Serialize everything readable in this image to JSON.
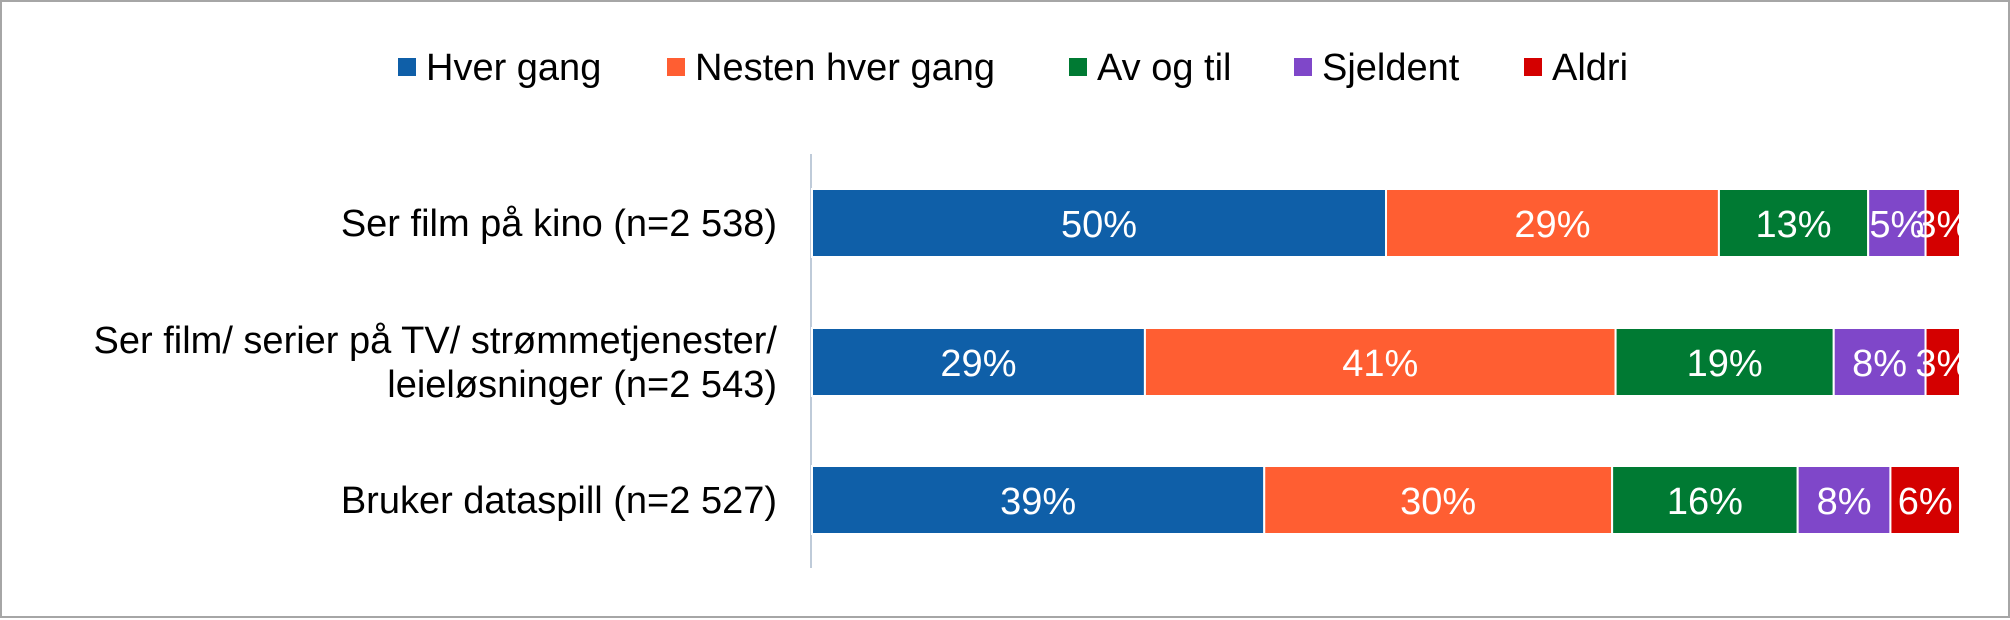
{
  "chart_data": {
    "type": "bar",
    "orientation": "horizontal",
    "stacked": true,
    "stack_mode": "percent",
    "title": "",
    "xlabel": "",
    "ylabel": "",
    "xlim": [
      0,
      100
    ],
    "legend_position": "top",
    "grid": false,
    "categories": [
      "Ser film på kino (n=2 538)",
      "Ser film/ serier på TV/ strømmetjenester/ leieløsninger (n=2 543)",
      "Bruker dataspill (n=2 527)"
    ],
    "category_lines": [
      [
        "Ser film på kino (n=2 538)"
      ],
      [
        "Ser film/ serier på TV/ strømmetjenester/",
        "leieløsninger (n=2 543)"
      ],
      [
        "Bruker dataspill (n=2 527)"
      ]
    ],
    "series": [
      {
        "name": "Hver gang",
        "color": "#0f5fa8",
        "values": [
          50,
          29,
          39
        ],
        "labels": [
          "50%",
          "29%",
          "39%"
        ]
      },
      {
        "name": "Nesten hver gang",
        "color": "#ff5e32",
        "values": [
          29,
          41,
          30
        ],
        "labels": [
          "29%",
          "41%",
          "30%"
        ]
      },
      {
        "name": "Av og til",
        "color": "#007a33",
        "values": [
          13,
          19,
          16
        ],
        "labels": [
          "13%",
          "19%",
          "16%"
        ]
      },
      {
        "name": "Sjeldent",
        "color": "#7f47c9",
        "values": [
          5,
          8,
          8
        ],
        "labels": [
          "5%",
          "8%",
          "8%"
        ]
      },
      {
        "name": "Aldri",
        "color": "#d40000",
        "values": [
          3,
          3,
          6
        ],
        "labels": [
          "3%",
          "3%",
          "6%"
        ]
      }
    ]
  }
}
